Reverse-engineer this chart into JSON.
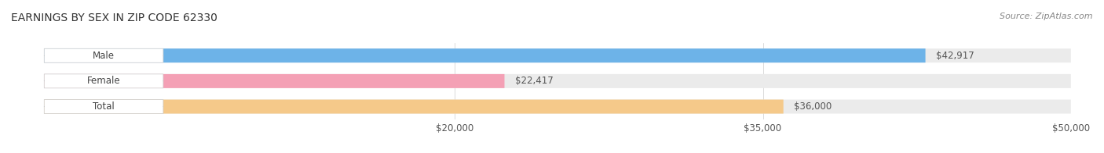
{
  "title": "EARNINGS BY SEX IN ZIP CODE 62330",
  "source": "Source: ZipAtlas.com",
  "categories": [
    "Male",
    "Female",
    "Total"
  ],
  "values": [
    42917,
    22417,
    36000
  ],
  "bar_colors": [
    "#6db3e8",
    "#f4a0b5",
    "#f5c98a"
  ],
  "label_colors": [
    "#6db3e8",
    "#f4a0b5",
    "#f5c98a"
  ],
  "bar_bg_color": "#ebebeb",
  "value_labels": [
    "$42,917",
    "$22,417",
    "$36,000"
  ],
  "x_tick_labels": [
    "$20,000",
    "$35,000",
    "$50,000"
  ],
  "x_tick_values": [
    20000,
    35000,
    50000
  ],
  "xmin": 0,
  "xmax": 50000,
  "bar_height": 0.55,
  "title_fontsize": 10,
  "label_fontsize": 8.5,
  "value_fontsize": 8.5,
  "tick_fontsize": 8.5,
  "source_fontsize": 8
}
